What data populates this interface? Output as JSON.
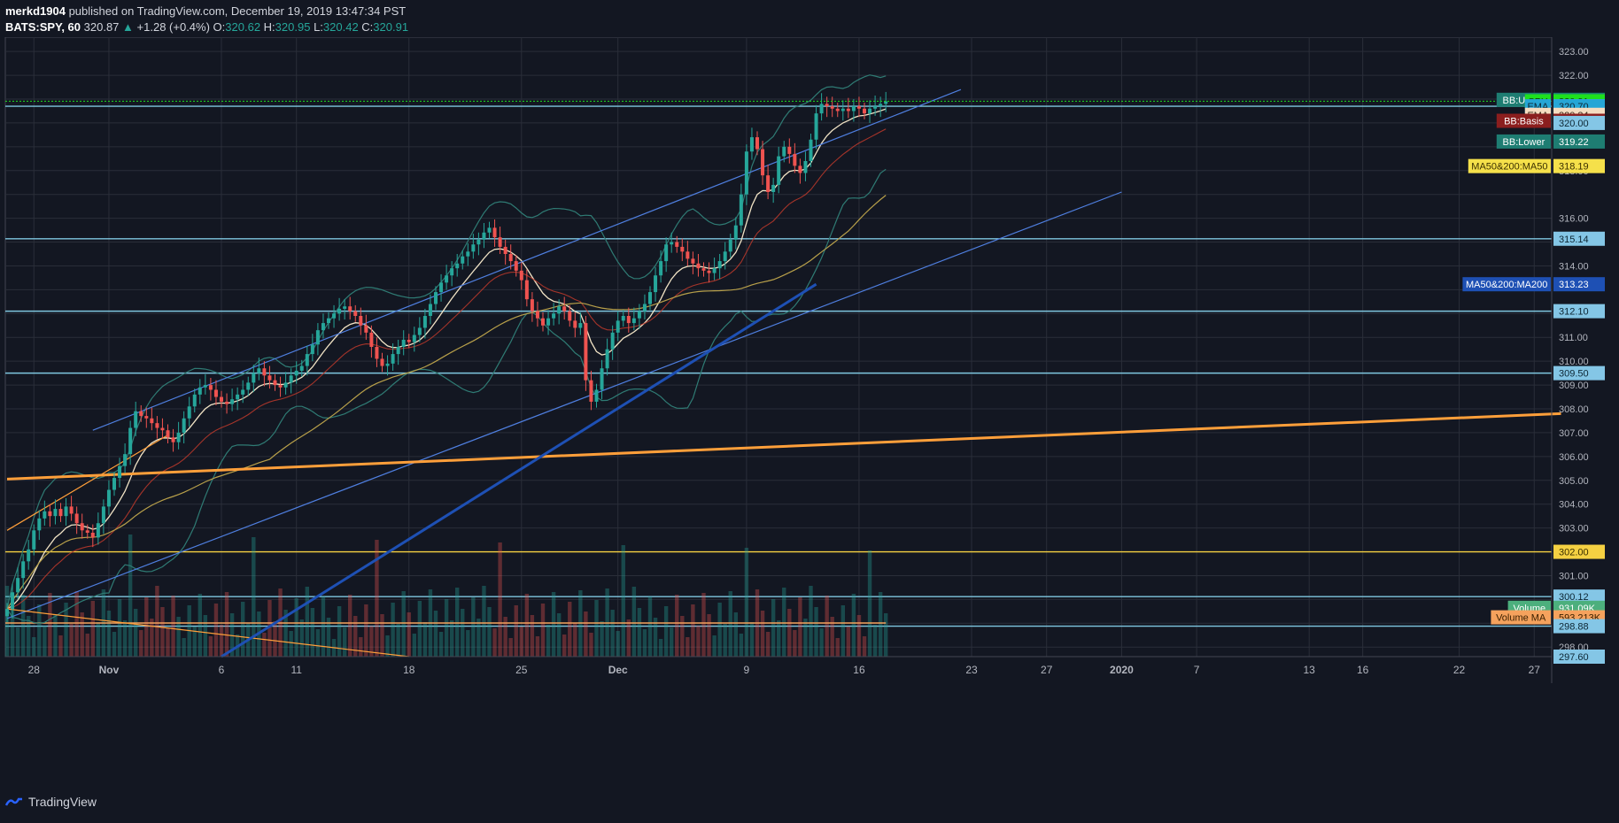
{
  "header": {
    "author": "merkd1904",
    "published": "published on TradingView.com, December 19, 2019 13:47:34 PST",
    "symbol": "BATS:SPY, 60",
    "last": "320.87",
    "change_arrow": "▲",
    "change": "+1.28 (+0.4%)",
    "o_label": "O:",
    "o_value": "320.62",
    "h_label": "H:",
    "h_value": "320.95",
    "l_label": "L:",
    "l_value": "320.42",
    "c_label": "C:",
    "c_value": "320.91"
  },
  "footer": {
    "brand": "TradingView"
  },
  "colors": {
    "background": "#131722",
    "grid": "#2a2e39",
    "up": "#26a69a",
    "down": "#ef5350",
    "hline": "#7fc7e0",
    "orange": "#ff9f3a",
    "yellow": "#f5d142",
    "channel": "#4f7fe0",
    "ma200": "#1e50b4",
    "bb": "#2f7b74",
    "ema_fast": "#f2e4c6",
    "ema_slow": "#c0392b",
    "ma50": "#b8a04a"
  },
  "chart_data": {
    "type": "candlestick",
    "symbol": "SPY",
    "interval": "60",
    "ylim": [
      297.6,
      323.6
    ],
    "y_ticks": [
      298.0,
      299.0,
      300.0,
      301.0,
      302.0,
      303.0,
      304.0,
      305.0,
      306.0,
      307.0,
      308.0,
      309.0,
      310.0,
      311.0,
      312.0,
      313.0,
      314.0,
      315.0,
      316.0,
      317.0,
      318.0,
      319.0,
      320.0,
      321.0,
      322.0,
      323.0
    ],
    "y_tick_labels": [
      "298.00",
      "",
      "",
      "301.00",
      "302.00",
      "303.00",
      "304.00",
      "305.00",
      "306.00",
      "307.00",
      "308.00",
      "309.00",
      "310.00",
      "311.00",
      "312.00",
      "",
      "314.00",
      "",
      "316.00",
      "",
      "318.00",
      "",
      "320.00",
      "",
      "322.00",
      "323.00"
    ],
    "x_ticks": [
      {
        "label": "28",
        "bar": 5
      },
      {
        "label": "Nov",
        "bar": 19
      },
      {
        "label": "6",
        "bar": 40
      },
      {
        "label": "11",
        "bar": 54
      },
      {
        "label": "18",
        "bar": 75
      },
      {
        "label": "25",
        "bar": 96
      },
      {
        "label": "Dec",
        "bar": 114
      },
      {
        "label": "9",
        "bar": 138
      },
      {
        "label": "16",
        "bar": 159
      },
      {
        "label": "23",
        "bar": 180
      },
      {
        "label": "27",
        "bar": 194
      },
      {
        "label": "2020",
        "bar": 208
      },
      {
        "label": "7",
        "bar": 222
      },
      {
        "label": "13",
        "bar": 243
      },
      {
        "label": "16",
        "bar": 253
      },
      {
        "label": "22",
        "bar": 271
      },
      {
        "label": "27",
        "bar": 285
      }
    ],
    "horizontal_levels": [
      {
        "value": 320.7,
        "color": "hline"
      },
      {
        "value": 315.14,
        "color": "hline"
      },
      {
        "value": 312.1,
        "color": "hline"
      },
      {
        "value": 309.5,
        "color": "hline"
      },
      {
        "value": 302.0,
        "color": "yellow"
      },
      {
        "value": 300.12,
        "color": "hline"
      },
      {
        "value": 298.88,
        "color": "hline"
      }
    ],
    "price_labels": [
      {
        "name": "BB:Upper",
        "value": "320.97",
        "y": 320.97,
        "bg": "#1e7d72",
        "fg": "#ffffff"
      },
      {
        "name": "SPY",
        "value": "320.91",
        "y": 320.91,
        "bg": "#1ee01e",
        "fg": "#0b3d0b"
      },
      {
        "name": "",
        "value": "320.70",
        "y": 320.7,
        "bg": "#84c6e6",
        "fg": "#0d2633"
      },
      {
        "name": "EMA",
        "value": "320.70",
        "y": 320.7,
        "bg": "#26a6d6",
        "fg": "#0d2633"
      },
      {
        "name": "EMA",
        "value": "320.34",
        "y": 320.34,
        "bg": "#f5dcc0",
        "fg": "#3b2a1a"
      },
      {
        "name": "BB:Basis",
        "value": "320.09",
        "y": 320.09,
        "bg": "#8b1e1e",
        "fg": "#ffffff"
      },
      {
        "name": "",
        "value": "320.00",
        "y": 320.0,
        "bg": "#84c6e6",
        "fg": "#0d2633"
      },
      {
        "name": "BB:Lower",
        "value": "319.22",
        "y": 319.22,
        "bg": "#1e7d72",
        "fg": "#ffffff"
      },
      {
        "name": "MA50&200:MA50",
        "value": "318.19",
        "y": 318.19,
        "bg": "#f5e04a",
        "fg": "#3b3000"
      },
      {
        "name": "",
        "value": "315.14",
        "y": 315.14,
        "bg": "#84c6e6",
        "fg": "#0d2633"
      },
      {
        "name": "MA50&200:MA200",
        "value": "313.23",
        "y": 313.23,
        "bg": "#1e50b4",
        "fg": "#ffffff"
      },
      {
        "name": "",
        "value": "312.10",
        "y": 312.1,
        "bg": "#84c6e6",
        "fg": "#0d2633"
      },
      {
        "name": "",
        "value": "309.50",
        "y": 309.5,
        "bg": "#84c6e6",
        "fg": "#0d2633"
      },
      {
        "name": "",
        "value": "302.00",
        "y": 302.0,
        "bg": "#f5d142",
        "fg": "#3b3000"
      },
      {
        "name": "",
        "value": "300.12",
        "y": 300.12,
        "bg": "#84c6e6",
        "fg": "#0d2633"
      },
      {
        "name": "Volume",
        "value": "931.09K",
        "y": 299.65,
        "bg": "#4caf7d",
        "fg": "#ffffff"
      },
      {
        "name": "Volume MA",
        "value": "593.213K",
        "y": 299.25,
        "bg": "#f5a25d",
        "fg": "#3b2000"
      },
      {
        "name": "",
        "value": "298.88",
        "y": 298.88,
        "bg": "#84c6e6",
        "fg": "#0d2633"
      },
      {
        "name": "",
        "value": "297.60",
        "y": 297.6,
        "bg": "#84c6e6",
        "fg": "#0d2633"
      }
    ],
    "trendlines": [
      {
        "kind": "channel-upper",
        "from": {
          "bar": 16,
          "price": 307.1
        },
        "to": {
          "bar": 178,
          "price": 321.4
        },
        "color": "channel"
      },
      {
        "kind": "channel-lower",
        "from": {
          "bar": 0,
          "price": 299.2
        },
        "to": {
          "bar": 208,
          "price": 317.1
        },
        "color": "channel"
      },
      {
        "kind": "support",
        "from": {
          "bar": 0,
          "price": 305.05
        },
        "to": {
          "bar": 290,
          "price": 307.8
        },
        "color": "orange"
      },
      {
        "kind": "descending",
        "from": {
          "bar": 0,
          "price": 299.6
        },
        "to": {
          "bar": 75,
          "price": 297.6
        },
        "color": "orange"
      },
      {
        "kind": "rising-short",
        "from": {
          "bar": 0,
          "price": 302.9
        },
        "to": {
          "bar": 30,
          "price": 306.9
        },
        "color": "orange"
      }
    ],
    "series": [
      {
        "name": "SPY",
        "type": "candlestick",
        "closes": [
          299.6,
          300.3,
          300.9,
          301.6,
          302.1,
          302.9,
          303.4,
          303.7,
          303.5,
          303.8,
          303.5,
          303.9,
          303.6,
          303.2,
          302.9,
          302.8,
          302.6,
          303.2,
          303.9,
          304.6,
          305.1,
          305.6,
          306.1,
          307.2,
          307.9,
          307.7,
          307.6,
          307.4,
          307.2,
          307.1,
          306.8,
          306.6,
          307.0,
          307.6,
          308.1,
          308.6,
          308.9,
          309.0,
          308.8,
          308.5,
          308.3,
          308.2,
          308.4,
          308.6,
          308.8,
          309.1,
          309.5,
          309.7,
          309.4,
          309.2,
          309.0,
          308.9,
          309.1,
          309.4,
          309.6,
          309.8,
          310.3,
          310.7,
          311.3,
          311.6,
          311.8,
          312.0,
          312.2,
          312.3,
          312.1,
          311.9,
          311.5,
          311.2,
          310.6,
          310.1,
          309.8,
          309.9,
          310.3,
          310.6,
          310.9,
          310.8,
          311.1,
          311.4,
          311.9,
          312.4,
          312.9,
          313.3,
          313.6,
          313.9,
          314.1,
          314.4,
          314.6,
          314.9,
          315.1,
          315.4,
          315.6,
          315.2,
          314.8,
          314.5,
          314.2,
          313.8,
          313.4,
          312.6,
          312.1,
          311.8,
          311.5,
          311.8,
          312.0,
          312.3,
          312.1,
          311.7,
          311.4,
          311.6,
          309.2,
          308.3,
          308.8,
          309.7,
          310.5,
          311.2,
          311.7,
          311.9,
          311.6,
          311.8,
          312.1,
          312.4,
          312.9,
          313.6,
          314.2,
          314.9,
          315.0,
          314.8,
          314.6,
          314.3,
          314.1,
          313.9,
          313.8,
          313.7,
          313.9,
          314.2,
          314.6,
          315.1,
          315.7,
          317.0,
          318.8,
          319.4,
          318.9,
          317.8,
          317.1,
          317.4,
          318.6,
          319.0,
          318.7,
          318.2,
          317.9,
          318.4,
          319.3,
          320.4,
          320.8,
          320.7,
          320.6,
          320.5,
          320.6,
          320.5,
          320.7,
          320.6,
          320.4,
          320.6,
          320.7,
          320.8,
          320.9
        ]
      },
      {
        "name": "Volume MA",
        "type": "line",
        "value": 593213
      }
    ]
  }
}
